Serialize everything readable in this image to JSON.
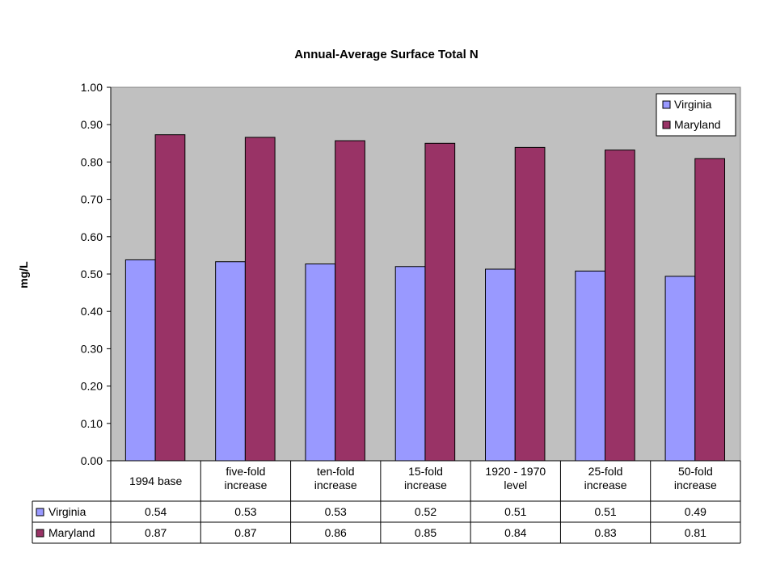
{
  "chart_data": {
    "type": "bar",
    "title": "Annual-Average Surface Total N",
    "ylabel": "mg/L",
    "xlabel": "",
    "ylim": [
      0,
      1.0
    ],
    "ytick_step": 0.1,
    "ytick_labels": [
      "0.00",
      "0.10",
      "0.20",
      "0.30",
      "0.40",
      "0.50",
      "0.60",
      "0.70",
      "0.80",
      "0.90",
      "1.00"
    ],
    "categories": [
      [
        "1994 base"
      ],
      [
        "five-fold",
        "increase"
      ],
      [
        "ten-fold",
        "increase"
      ],
      [
        "15-fold",
        "increase"
      ],
      [
        "1920 - 1970",
        "level"
      ],
      [
        "25-fold",
        "increase"
      ],
      [
        "50-fold",
        "increase"
      ]
    ],
    "series": [
      {
        "name": "Virginia",
        "color": "#9999ff",
        "values": [
          0.538,
          0.533,
          0.527,
          0.52,
          0.513,
          0.508,
          0.494
        ],
        "labels": [
          "0.54",
          "0.53",
          "0.53",
          "0.52",
          "0.51",
          "0.51",
          "0.49"
        ]
      },
      {
        "name": "Maryland",
        "color": "#993366",
        "values": [
          0.873,
          0.866,
          0.857,
          0.85,
          0.839,
          0.832,
          0.809
        ],
        "labels": [
          "0.87",
          "0.87",
          "0.86",
          "0.85",
          "0.84",
          "0.83",
          "0.81"
        ]
      }
    ],
    "grid": false,
    "plot_background": "#c0c0c0",
    "legend_position": "top-right",
    "data_table": true
  }
}
